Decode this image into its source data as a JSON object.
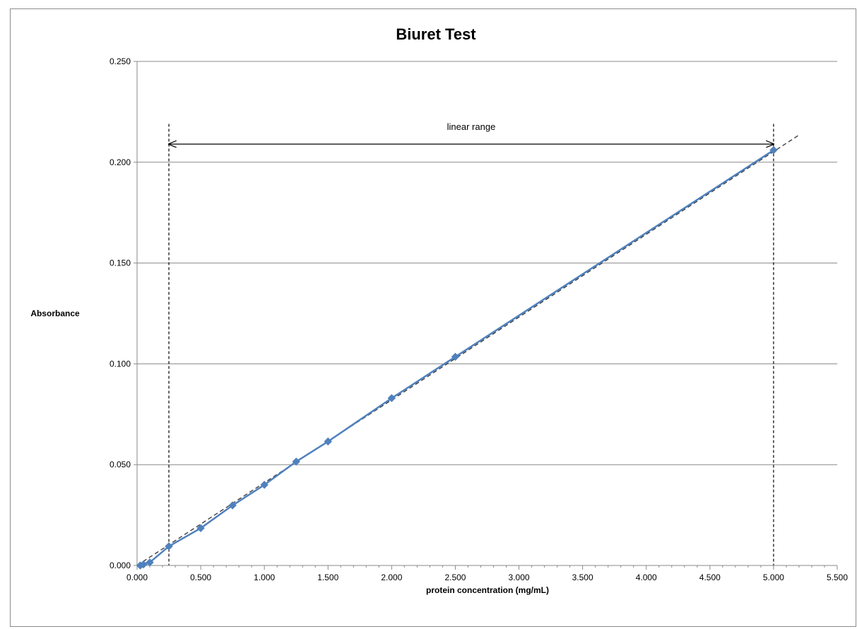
{
  "chart_data": {
    "type": "line",
    "title": "Biuret Test",
    "xlabel": "protein concentration (mg/mL)",
    "ylabel": "Absorbance",
    "xlim": [
      0,
      5.5
    ],
    "ylim": [
      0,
      0.25
    ],
    "x_ticks": [
      "0.000",
      "0.500",
      "1.000",
      "1.500",
      "2.000",
      "2.500",
      "3.000",
      "3.500",
      "4.000",
      "4.500",
      "5.000",
      "5.500"
    ],
    "y_ticks": [
      "0.000",
      "0.050",
      "0.100",
      "0.150",
      "0.200",
      "0.250"
    ],
    "grid": "horizontal",
    "series": [
      {
        "color": "#4f81bd",
        "marker": "diamond",
        "x": [
          0.025,
          0.05,
          0.1,
          0.25,
          0.5,
          0.75,
          1.0,
          1.25,
          1.5,
          2.0,
          2.5,
          5.0
        ],
        "y": [
          0.0,
          0.0005,
          0.0015,
          0.0095,
          0.0185,
          0.0298,
          0.04,
          0.0515,
          0.0615,
          0.083,
          0.1035,
          0.206
        ]
      }
    ],
    "trendline": {
      "style": "dashed",
      "color": "#404040",
      "from": [
        0.0,
        0.0
      ],
      "to": [
        5.2,
        0.2135
      ]
    },
    "annotations": [
      {
        "text": "linear range",
        "x_from": 0.25,
        "x_to": 5.0,
        "arrow_y": 0.209,
        "boundary_lines": [
          0.25,
          5.0
        ],
        "boundary_top": 0.219
      }
    ]
  }
}
